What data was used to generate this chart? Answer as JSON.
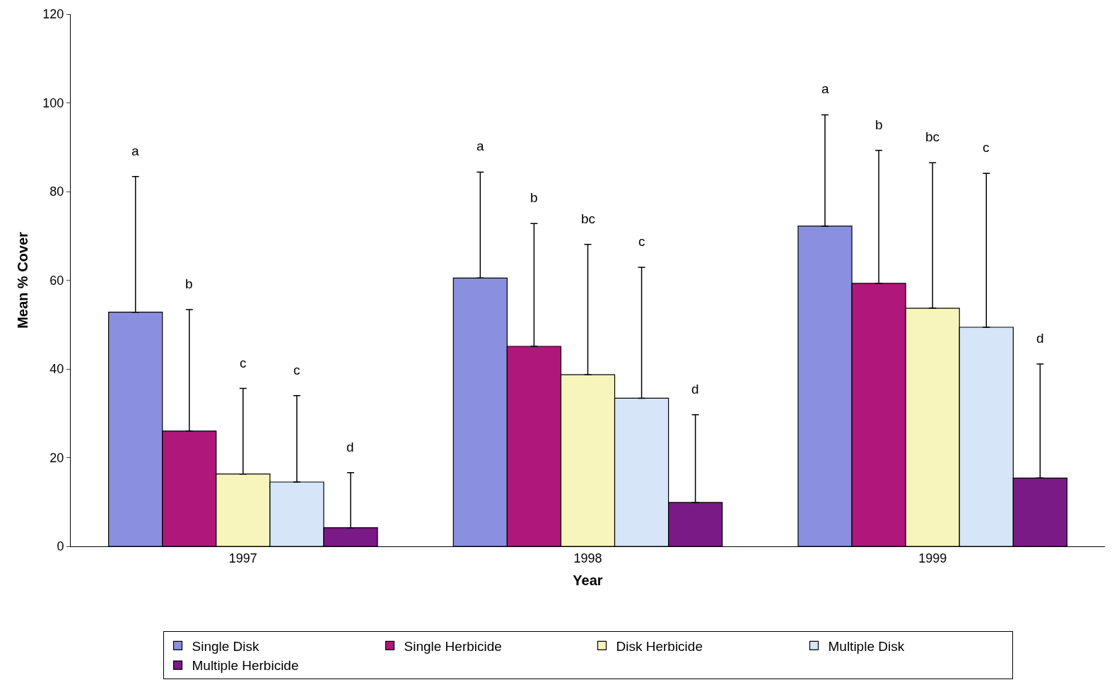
{
  "chart_data": {
    "type": "bar",
    "xlabel": "Year",
    "ylabel": "Mean % Cover",
    "categories": [
      "1997",
      "1998",
      "1999"
    ],
    "series": [
      {
        "name": "Single Disk",
        "color": "#8a8fdf",
        "values": [
          52.8,
          60.5,
          72.2
        ],
        "errors": [
          [
            52.8,
            83.4
          ],
          [
            60.5,
            84.4
          ],
          [
            72.2,
            97.3
          ]
        ]
      },
      {
        "name": "Single Herbicide",
        "color": "#b0177a",
        "values": [
          26.0,
          45.1,
          59.3
        ],
        "errors": [
          [
            26.0,
            53.4
          ],
          [
            45.1,
            72.8
          ],
          [
            59.3,
            89.3
          ]
        ]
      },
      {
        "name": "Disk Herbicide",
        "color": "#f7f5bc",
        "values": [
          16.3,
          38.7,
          53.7
        ],
        "errors": [
          [
            16.3,
            35.6
          ],
          [
            38.7,
            68.1
          ],
          [
            53.7,
            86.5
          ]
        ]
      },
      {
        "name": "Multiple Disk",
        "color": "#d6e6f8",
        "values": [
          14.5,
          33.4,
          49.4
        ],
        "errors": [
          [
            14.5,
            34.0
          ],
          [
            33.4,
            62.9
          ],
          [
            49.4,
            84.1
          ]
        ]
      },
      {
        "name": "Multiple Herbicide",
        "color": "#7a1a86",
        "values": [
          4.2,
          9.9,
          15.4
        ],
        "errors": [
          [
            4.2,
            16.6
          ],
          [
            9.9,
            29.7
          ],
          [
            15.4,
            41.1
          ]
        ]
      }
    ],
    "annotations": [
      "a",
      "b",
      "c",
      "c",
      "d",
      "a",
      "b",
      "bc",
      "c",
      "d",
      "a",
      "b",
      "bc",
      "c",
      "d"
    ],
    "ylim": [
      0,
      120
    ],
    "yticks": [
      0,
      20,
      40,
      60,
      80,
      100,
      120
    ],
    "grid": false,
    "legend": "bottom"
  }
}
